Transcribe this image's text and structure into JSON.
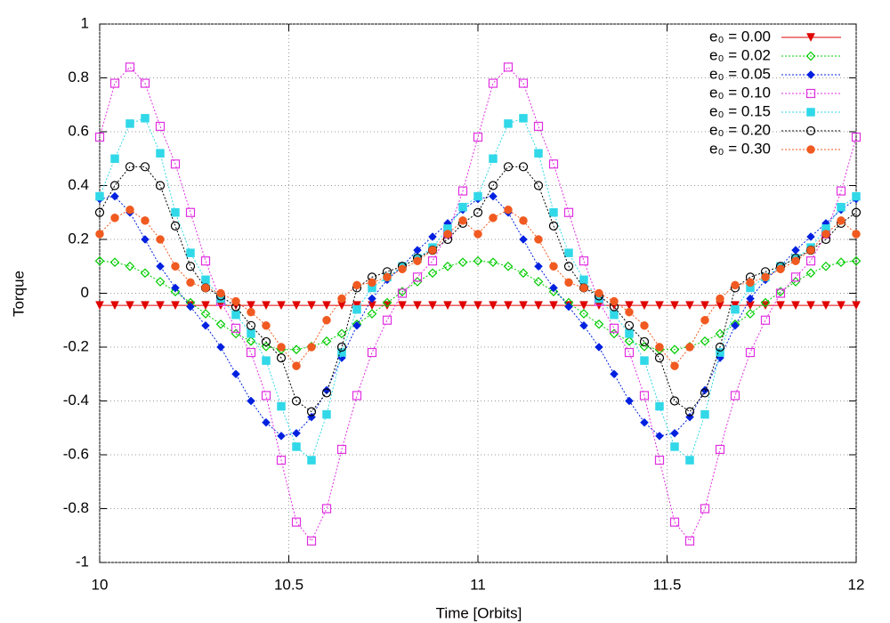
{
  "chart_data": {
    "type": "line",
    "xlabel": "Time [Orbits]",
    "ylabel": "Torque",
    "xlim": [
      10,
      12
    ],
    "ylim": [
      -1,
      1
    ],
    "xticks": [
      10,
      10.5,
      11,
      11.5,
      12
    ],
    "yticks": [
      -1,
      -0.8,
      -0.6,
      -0.4,
      -0.2,
      0,
      0.2,
      0.4,
      0.6,
      0.8,
      1
    ],
    "grid": true,
    "legend": "top-right",
    "x": [
      10,
      10.04,
      10.08,
      10.12,
      10.16,
      10.2,
      10.24,
      10.28,
      10.32,
      10.36,
      10.4,
      10.44,
      10.48,
      10.52,
      10.56,
      10.6,
      10.64,
      10.68,
      10.72,
      10.76,
      10.8,
      10.84,
      10.88,
      10.92,
      10.96,
      11,
      11.04,
      11.08,
      11.12,
      11.16,
      11.2,
      11.24,
      11.28,
      11.32,
      11.36,
      11.4,
      11.44,
      11.48,
      11.52,
      11.56,
      11.6,
      11.64,
      11.68,
      11.72,
      11.76,
      11.8,
      11.84,
      11.88,
      11.92,
      11.96,
      12
    ],
    "series": [
      {
        "name": "e₀ = 0.00",
        "color": "#e00000",
        "marker": "triangle-down",
        "values": [
          -0.045,
          -0.045,
          -0.045,
          -0.045,
          -0.045,
          -0.045,
          -0.045,
          -0.045,
          -0.045,
          -0.045,
          -0.045,
          -0.045,
          -0.045,
          -0.045,
          -0.045,
          -0.045,
          -0.045,
          -0.045,
          -0.045,
          -0.045,
          -0.045,
          -0.045,
          -0.045,
          -0.045,
          -0.045,
          -0.045,
          -0.045,
          -0.045,
          -0.045,
          -0.045,
          -0.045,
          -0.045,
          -0.045,
          -0.045,
          -0.045,
          -0.045,
          -0.045,
          -0.045,
          -0.045,
          -0.045,
          -0.045,
          -0.045,
          -0.045,
          -0.045,
          -0.045,
          -0.045,
          -0.045,
          -0.045,
          -0.045,
          -0.045,
          -0.045
        ]
      },
      {
        "name": "e₀ = 0.02",
        "color": "#00cc00",
        "marker": "diamond-open",
        "values": [
          0.12,
          0.115,
          0.1,
          0.075,
          0.043,
          0.006,
          -0.035,
          -0.076,
          -0.115,
          -0.15,
          -0.178,
          -0.198,
          -0.209,
          -0.209,
          -0.198,
          -0.178,
          -0.15,
          -0.115,
          -0.076,
          -0.035,
          0.006,
          0.043,
          0.075,
          0.1,
          0.115,
          0.12,
          0.115,
          0.1,
          0.075,
          0.043,
          0.006,
          -0.035,
          -0.076,
          -0.115,
          -0.15,
          -0.178,
          -0.198,
          -0.209,
          -0.209,
          -0.198,
          -0.178,
          -0.15,
          -0.115,
          -0.076,
          -0.035,
          0.006,
          0.043,
          0.075,
          0.1,
          0.115,
          0.12
        ]
      },
      {
        "name": "e₀ = 0.05",
        "color": "#0020e0",
        "marker": "diamond",
        "values": [
          0.35,
          0.36,
          0.3,
          0.2,
          0.1,
          0.02,
          -0.05,
          -0.12,
          -0.2,
          -0.3,
          -0.4,
          -0.48,
          -0.53,
          -0.52,
          -0.46,
          -0.36,
          -0.24,
          -0.12,
          -0.02,
          0.05,
          0.1,
          0.16,
          0.21,
          0.26,
          0.31,
          0.35,
          0.36,
          0.3,
          0.2,
          0.1,
          0.02,
          -0.05,
          -0.12,
          -0.2,
          -0.3,
          -0.4,
          -0.48,
          -0.53,
          -0.52,
          -0.46,
          -0.36,
          -0.24,
          -0.12,
          -0.02,
          0.05,
          0.1,
          0.16,
          0.21,
          0.26,
          0.31,
          0.35
        ]
      },
      {
        "name": "e₀ = 0.10",
        "color": "#e030e0",
        "marker": "square-open",
        "values": [
          0.58,
          0.78,
          0.84,
          0.78,
          0.62,
          0.48,
          0.3,
          0.12,
          -0.03,
          -0.13,
          -0.22,
          -0.38,
          -0.62,
          -0.85,
          -0.92,
          -0.8,
          -0.58,
          -0.38,
          -0.22,
          -0.1,
          0,
          0.06,
          0.12,
          0.22,
          0.38,
          0.58,
          0.78,
          0.84,
          0.78,
          0.62,
          0.48,
          0.3,
          0.12,
          -0.03,
          -0.13,
          -0.22,
          -0.38,
          -0.62,
          -0.85,
          -0.92,
          -0.8,
          -0.58,
          -0.38,
          -0.22,
          -0.1,
          0,
          0.06,
          0.12,
          0.22,
          0.38,
          0.58
        ]
      },
      {
        "name": "e₀ = 0.15",
        "color": "#30d8e8",
        "marker": "square",
        "values": [
          0.36,
          0.5,
          0.63,
          0.65,
          0.52,
          0.3,
          0.15,
          0.05,
          -0.02,
          -0.08,
          -0.15,
          -0.25,
          -0.42,
          -0.57,
          -0.62,
          -0.45,
          -0.22,
          -0.06,
          0.02,
          0.06,
          0.1,
          0.13,
          0.17,
          0.24,
          0.32,
          0.36,
          0.5,
          0.63,
          0.65,
          0.52,
          0.3,
          0.15,
          0.05,
          -0.02,
          -0.08,
          -0.15,
          -0.25,
          -0.42,
          -0.57,
          -0.62,
          -0.45,
          -0.22,
          -0.06,
          0.02,
          0.06,
          0.1,
          0.13,
          0.17,
          0.24,
          0.32,
          0.36
        ]
      },
      {
        "name": "e₀ = 0.20",
        "color": "#000000",
        "marker": "circle-open",
        "values": [
          0.3,
          0.4,
          0.47,
          0.47,
          0.4,
          0.25,
          0.1,
          0.02,
          -0.01,
          -0.05,
          -0.12,
          -0.18,
          -0.24,
          -0.4,
          -0.44,
          -0.37,
          -0.2,
          0.02,
          0.06,
          0.08,
          0.1,
          0.13,
          0.16,
          0.2,
          0.26,
          0.3,
          0.4,
          0.47,
          0.47,
          0.4,
          0.25,
          0.1,
          0.02,
          -0.01,
          -0.05,
          -0.12,
          -0.18,
          -0.24,
          -0.4,
          -0.44,
          -0.37,
          -0.2,
          0.02,
          0.06,
          0.08,
          0.1,
          0.13,
          0.16,
          0.2,
          0.26,
          0.3
        ]
      },
      {
        "name": "e₀ = 0.30",
        "color": "#f05a20",
        "marker": "circle",
        "values": [
          0.22,
          0.28,
          0.31,
          0.27,
          0.2,
          0.1,
          0.04,
          0.02,
          0,
          -0.03,
          -0.07,
          -0.12,
          -0.2,
          -0.27,
          -0.2,
          -0.1,
          -0.02,
          0.03,
          0.04,
          0.06,
          0.09,
          0.12,
          0.16,
          0.22,
          0.27,
          0.22,
          0.28,
          0.31,
          0.27,
          0.2,
          0.1,
          0.04,
          0.02,
          0,
          -0.03,
          -0.07,
          -0.12,
          -0.2,
          -0.27,
          -0.2,
          -0.1,
          -0.02,
          0.03,
          0.04,
          0.06,
          0.09,
          0.12,
          0.16,
          0.22,
          0.27,
          0.22
        ]
      }
    ]
  }
}
